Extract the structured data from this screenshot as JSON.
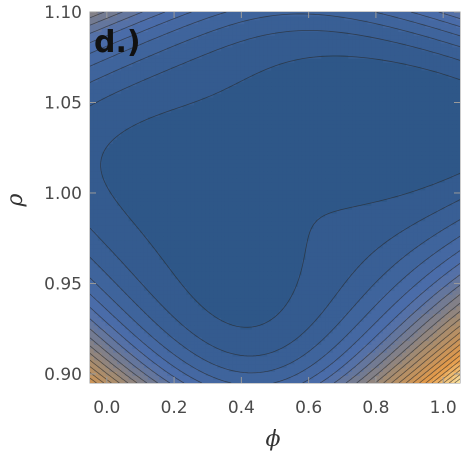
{
  "chart_data": {
    "type": "heatmap",
    "subtype": "filled-contour",
    "panel_label": "d.)",
    "xlabel": "ϕ",
    "ylabel": "ρ",
    "xlim": [
      -0.05,
      1.05
    ],
    "ylim": [
      0.895,
      1.1
    ],
    "x_ticks": [
      {
        "value": 0.0,
        "label": "0.0"
      },
      {
        "value": 0.2,
        "label": "0.2"
      },
      {
        "value": 0.4,
        "label": "0.4"
      },
      {
        "value": 0.6,
        "label": "0.6"
      },
      {
        "value": 0.8,
        "label": "0.8"
      },
      {
        "value": 1.0,
        "label": "1.0"
      }
    ],
    "y_ticks": [
      {
        "value": 0.9,
        "label": "0.90"
      },
      {
        "value": 0.95,
        "label": "0.95"
      },
      {
        "value": 1.0,
        "label": "1.00"
      },
      {
        "value": 1.05,
        "label": "1.05"
      },
      {
        "value": 1.1,
        "label": "1.10"
      }
    ],
    "features": [
      {
        "kind": "minimum",
        "x": 0.0,
        "y": 0.96
      },
      {
        "kind": "minimum",
        "x": 0.97,
        "y": 1.04
      },
      {
        "kind": "saddle",
        "x": 0.5,
        "y": 1.0
      }
    ],
    "levels": 24,
    "colors": {
      "low": "#2b5585",
      "mid_low": "#4d6eac",
      "mid": "#a78c6e",
      "mid_high": "#e59a48",
      "high": "#fbe6a6"
    }
  }
}
